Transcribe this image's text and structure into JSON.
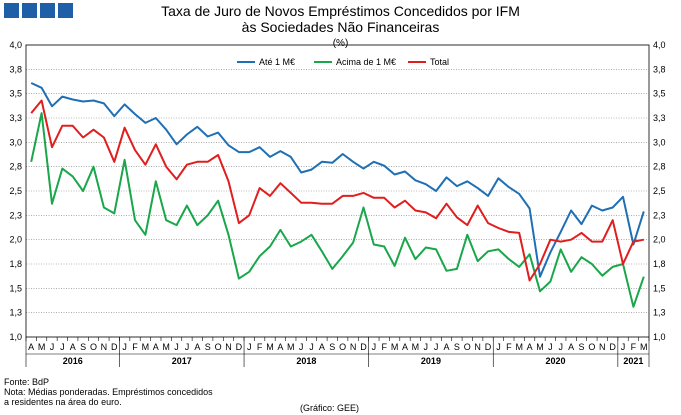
{
  "header": {
    "title_line1": "Taxa de Juro de Novos Empréstimos Concedidos por IFM",
    "title_line2": "às Sociedades Não Financeiras",
    "unit": "(%)"
  },
  "footer": {
    "source": "Fonte: BdP",
    "note_line1": "Nota: Médias ponderadas. Empréstimos concedidos",
    "note_line2": "a residentes na área do euro.",
    "credit": "(Gráfico: GEE)"
  },
  "chart_data": {
    "type": "line",
    "unit": "(%)",
    "ylim": [
      1.0,
      4.0
    ],
    "yticks": [
      "1,0",
      "1,3",
      "1,5",
      "1,8",
      "2,0",
      "2,3",
      "2,5",
      "2,8",
      "3,0",
      "3,3",
      "3,5",
      "3,8",
      "4,0"
    ],
    "legend_position": "top-center",
    "grid": true,
    "x": [
      "2016-04",
      "2016-05",
      "2016-06",
      "2016-07",
      "2016-08",
      "2016-09",
      "2016-10",
      "2016-11",
      "2016-12",
      "2017-01",
      "2017-02",
      "2017-03",
      "2017-04",
      "2017-05",
      "2017-06",
      "2017-07",
      "2017-08",
      "2017-09",
      "2017-10",
      "2017-11",
      "2017-12",
      "2018-01",
      "2018-02",
      "2018-03",
      "2018-04",
      "2018-05",
      "2018-06",
      "2018-07",
      "2018-08",
      "2018-09",
      "2018-10",
      "2018-11",
      "2018-12",
      "2019-01",
      "2019-02",
      "2019-03",
      "2019-04",
      "2019-05",
      "2019-06",
      "2019-07",
      "2019-08",
      "2019-09",
      "2019-10",
      "2019-11",
      "2019-12",
      "2020-01",
      "2020-02",
      "2020-03",
      "2020-04",
      "2020-05",
      "2020-06",
      "2020-07",
      "2020-08",
      "2020-09",
      "2020-10",
      "2020-11",
      "2020-12",
      "2021-01",
      "2021-02",
      "2021-03"
    ],
    "month_labels": [
      "A",
      "M",
      "J",
      "J",
      "A",
      "S",
      "O",
      "N",
      "D",
      "J",
      "F",
      "M",
      "A",
      "M",
      "J",
      "J",
      "A",
      "S",
      "O",
      "N",
      "D",
      "J",
      "F",
      "M",
      "A",
      "M",
      "J",
      "J",
      "A",
      "S",
      "O",
      "N",
      "D",
      "J",
      "F",
      "M",
      "A",
      "M",
      "J",
      "J",
      "A",
      "S",
      "O",
      "N",
      "D",
      "J",
      "F",
      "M",
      "A",
      "M",
      "J",
      "J",
      "A",
      "S",
      "O",
      "N",
      "D",
      "J",
      "F",
      "M"
    ],
    "year_labels": [
      {
        "label": "2016",
        "from": 0,
        "to": 8
      },
      {
        "label": "2017",
        "from": 9,
        "to": 20
      },
      {
        "label": "2018",
        "from": 21,
        "to": 32
      },
      {
        "label": "2019",
        "from": 33,
        "to": 44
      },
      {
        "label": "2020",
        "from": 45,
        "to": 56
      },
      {
        "label": "2021",
        "from": 57,
        "to": 59
      }
    ],
    "series": [
      {
        "name": "Até 1 M€",
        "color": "#1f6fb5",
        "values": [
          3.61,
          3.56,
          3.37,
          3.47,
          3.44,
          3.42,
          3.43,
          3.4,
          3.27,
          3.39,
          3.29,
          3.2,
          3.25,
          3.13,
          2.98,
          3.08,
          3.16,
          3.06,
          3.1,
          2.97,
          2.9,
          2.9,
          2.95,
          2.85,
          2.91,
          2.85,
          2.69,
          2.72,
          2.8,
          2.79,
          2.88,
          2.8,
          2.73,
          2.8,
          2.76,
          2.67,
          2.7,
          2.61,
          2.57,
          2.5,
          2.64,
          2.55,
          2.6,
          2.53,
          2.45,
          2.63,
          2.54,
          2.47,
          2.32,
          1.62,
          1.87,
          2.08,
          2.3,
          2.16,
          2.35,
          2.3,
          2.33,
          2.44,
          1.95,
          2.29
        ]
      },
      {
        "name": "Acima de 1 M€",
        "color": "#1aa64a",
        "values": [
          2.8,
          3.3,
          2.37,
          2.73,
          2.65,
          2.5,
          2.75,
          2.33,
          2.27,
          2.82,
          2.2,
          2.05,
          2.6,
          2.2,
          2.15,
          2.35,
          2.15,
          2.25,
          2.4,
          2.05,
          1.6,
          1.67,
          1.83,
          1.93,
          2.1,
          1.93,
          1.98,
          2.05,
          1.88,
          1.7,
          1.83,
          1.97,
          2.33,
          1.95,
          1.93,
          1.73,
          2.02,
          1.8,
          1.92,
          1.9,
          1.68,
          1.7,
          2.05,
          1.78,
          1.88,
          1.9,
          1.8,
          1.72,
          1.85,
          1.47,
          1.57,
          1.9,
          1.67,
          1.82,
          1.75,
          1.63,
          1.72,
          1.75,
          1.31,
          1.62
        ]
      },
      {
        "name": "Total",
        "color": "#e01e1e",
        "values": [
          3.3,
          3.43,
          2.95,
          3.17,
          3.17,
          3.05,
          3.13,
          3.05,
          2.8,
          3.15,
          2.92,
          2.77,
          2.98,
          2.75,
          2.62,
          2.77,
          2.8,
          2.8,
          2.87,
          2.6,
          2.17,
          2.25,
          2.53,
          2.45,
          2.58,
          2.48,
          2.38,
          2.38,
          2.37,
          2.37,
          2.45,
          2.45,
          2.48,
          2.43,
          2.43,
          2.33,
          2.4,
          2.3,
          2.28,
          2.22,
          2.37,
          2.23,
          2.15,
          2.35,
          2.17,
          2.12,
          2.08,
          2.07,
          1.58,
          1.75,
          2.0,
          1.98,
          2.0,
          2.07,
          1.98,
          1.98,
          2.2,
          1.75,
          1.98,
          2.0
        ]
      }
    ]
  }
}
